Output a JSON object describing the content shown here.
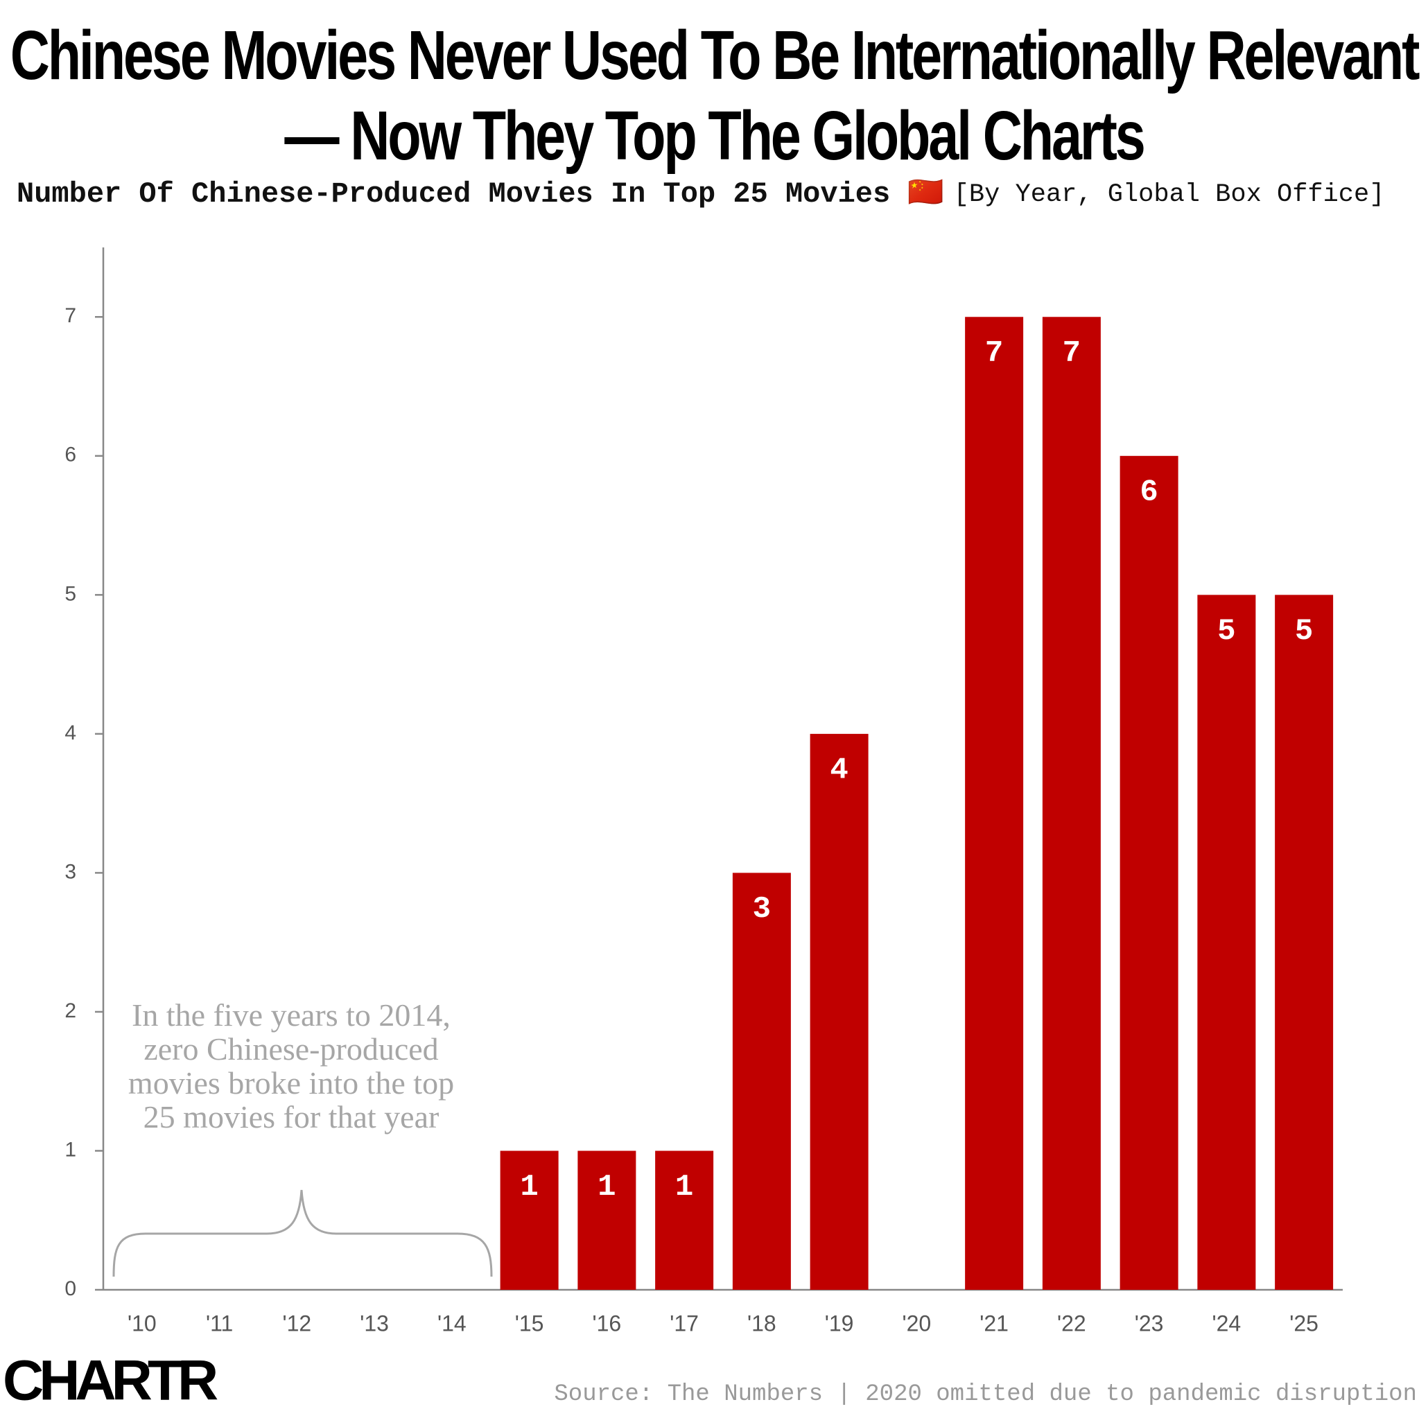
{
  "chart_data": {
    "type": "bar",
    "title": "Chinese Movies Never Used To Be Internationally Relevant — Now They Top The Global Charts",
    "subtitle": "Number Of Chinese-Produced Movies In Top 25 Movies 🇨🇳",
    "subtitle_note": "[By Year, Global Box Office]",
    "annotation": "In the five years to 2014, zero Chinese-produced movies broke into the top 25 movies for that year",
    "source": "Source: The Numbers | 2020 omitted due to pandemic disruption",
    "logo": "CHARTR",
    "categories": [
      "'10",
      "'11",
      "'12",
      "'13",
      "'14",
      "'15",
      "'16",
      "'17",
      "'18",
      "'19",
      "'20",
      "'21",
      "'22",
      "'23",
      "'24",
      "'25"
    ],
    "values": [
      0,
      0,
      0,
      0,
      0,
      1,
      1,
      1,
      3,
      4,
      null,
      7,
      7,
      6,
      5,
      5
    ],
    "color": "#c00000",
    "ylim": [
      0,
      7.5
    ],
    "yticks": [
      0,
      1,
      2,
      3,
      4,
      5,
      6,
      7
    ],
    "grid": false
  }
}
